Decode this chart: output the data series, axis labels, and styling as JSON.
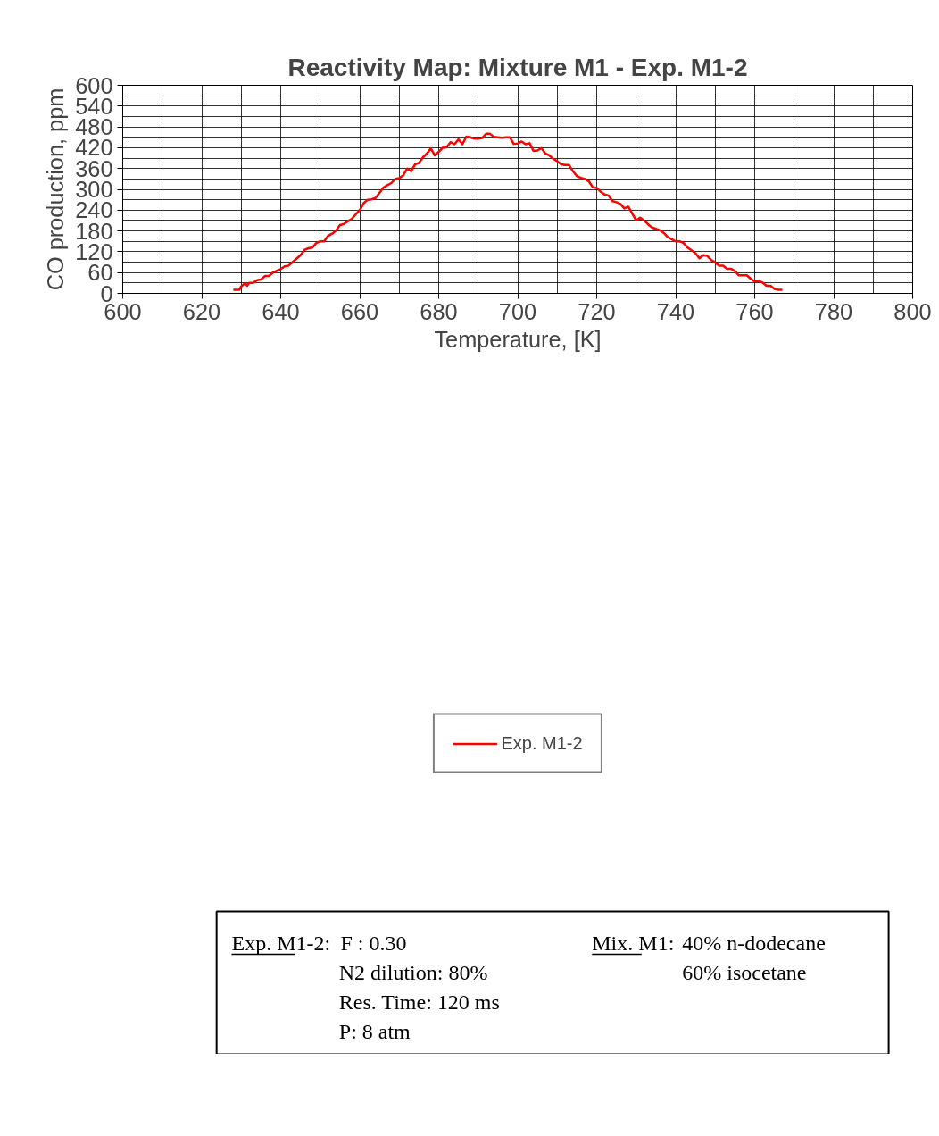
{
  "chart_data": {
    "type": "line",
    "title": "Reactivity Map: Mixture M1 - Exp. M1-2",
    "xlabel": "Temperature, [K]",
    "ylabel": "CO production, ppm",
    "xlim": [
      600,
      800
    ],
    "xticks": [
      600,
      620,
      640,
      660,
      680,
      700,
      720,
      740,
      760,
      780,
      800
    ],
    "ylim": [
      0,
      600
    ],
    "yticks": [
      0,
      60,
      120,
      180,
      240,
      300,
      360,
      420,
      480,
      540,
      600
    ],
    "grid": true,
    "legend": "bottom",
    "marker": "none",
    "line_style": "solid",
    "series": [
      {
        "name": "Exp. M1-2",
        "color": "#ff0000",
        "x": [
          628,
          629.5,
          630,
          631,
          631.5,
          632,
          633,
          634,
          635,
          636,
          637,
          638,
          639,
          640,
          641,
          642,
          643,
          644,
          645,
          646,
          647,
          648,
          649,
          650,
          651,
          652,
          653,
          654,
          655,
          656,
          657,
          658,
          659,
          660,
          661,
          662,
          663,
          664,
          665,
          666,
          667,
          668,
          669,
          670,
          671,
          672,
          673,
          674,
          675,
          676,
          677,
          678,
          679,
          680,
          681,
          682,
          683,
          684,
          685,
          686,
          687,
          688,
          689,
          690,
          691,
          692,
          693,
          694,
          695,
          696,
          697,
          698,
          699,
          700,
          701,
          702,
          703,
          704,
          705,
          706,
          707,
          708,
          709,
          710,
          711,
          712,
          713,
          714,
          715,
          716,
          717,
          718,
          719,
          720,
          721,
          722,
          723,
          724,
          725,
          726,
          727,
          728,
          729,
          730,
          731,
          732,
          733,
          734,
          735,
          736,
          737,
          738,
          739,
          740,
          741,
          742,
          743,
          744,
          745,
          746,
          747,
          748,
          749,
          750,
          751,
          752,
          753,
          754,
          755,
          756,
          757,
          758,
          759,
          760,
          761,
          762,
          763,
          764,
          765,
          766,
          767
        ],
        "values": [
          10,
          10,
          20,
          30,
          22,
          30,
          30,
          38,
          40,
          50,
          50,
          60,
          65,
          70,
          78,
          80,
          90,
          100,
          110,
          125,
          130,
          132,
          145,
          150,
          150,
          166,
          172,
          181,
          197,
          200,
          208,
          215,
          228,
          240,
          260,
          270,
          271,
          275,
          290,
          305,
          312,
          318,
          330,
          332,
          340,
          360,
          352,
          372,
          376,
          392,
          403,
          418,
          398,
          408,
          420,
          421,
          436,
          430,
          444,
          430,
          452,
          450,
          446,
          446,
          448,
          460,
          460,
          451,
          450,
          449,
          450,
          450,
          431,
          432,
          438,
          430,
          433,
          411,
          412,
          419,
          403,
          398,
          388,
          381,
          372,
          370,
          370,
          352,
          338,
          333,
          330,
          323,
          306,
          304,
          293,
          285,
          282,
          266,
          263,
          258,
          245,
          250,
          230,
          210,
          218,
          210,
          199,
          190,
          186,
          182,
          174,
          162,
          156,
          150,
          150,
          145,
          132,
          124,
          116,
          101,
          110,
          108,
          96,
          89,
          80,
          80,
          71,
          71,
          64,
          52,
          52,
          52,
          42,
          34,
          36,
          31,
          22,
          22,
          13,
          10,
          10
        ]
      }
    ],
    "annotations": [
      "Exp. M1-2:",
      "F : 0.30",
      "N2 dilution: 80%",
      "Res. Time: 120 ms",
      "P: 8 atm",
      "Mix. M1:",
      "40% n-dodecane",
      "60% isocetane"
    ]
  }
}
